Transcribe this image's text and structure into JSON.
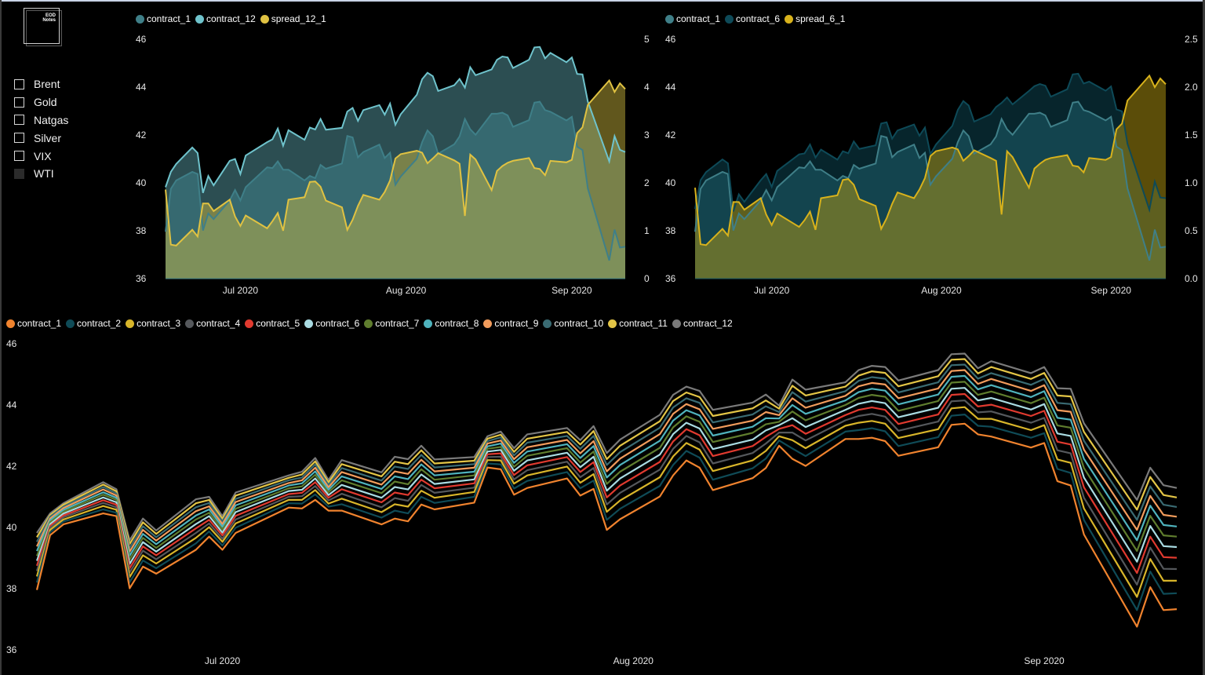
{
  "logo": {
    "line1": "EOD",
    "line2": "Notes"
  },
  "slicer": {
    "items": [
      {
        "label": "Brent",
        "checked": false
      },
      {
        "label": "Gold",
        "checked": false
      },
      {
        "label": "Natgas",
        "checked": false
      },
      {
        "label": "Silver",
        "checked": false
      },
      {
        "label": "VIX",
        "checked": false
      },
      {
        "label": "WTI",
        "checked": true
      }
    ]
  },
  "chart_data": [
    {
      "id": "spread-12-1",
      "type": "area",
      "title": "",
      "legend": [
        {
          "name": "contract_1",
          "color": "#3f7f88"
        },
        {
          "name": "contract_12",
          "color": "#6fc3cc"
        },
        {
          "name": "spread_12_1",
          "color": "#e0c242"
        }
      ],
      "legend_position": "top-left",
      "xlabel": "",
      "ylabel": "",
      "y2label": "",
      "x_ticks": [
        "Jul 2020",
        "Aug 2020",
        "Sep 2020"
      ],
      "ylim": [
        36,
        46
      ],
      "y_ticks": [
        "36",
        "38",
        "40",
        "42",
        "44",
        "46"
      ],
      "y2lim": [
        0,
        5
      ],
      "y2_ticks": [
        "0",
        "1",
        "2",
        "3",
        "4",
        "5"
      ],
      "series_left": [
        "contract_1",
        "contract_12"
      ],
      "series_right": "spread_12_1"
    },
    {
      "id": "spread-6-1",
      "type": "area",
      "title": "",
      "legend": [
        {
          "name": "contract_1",
          "color": "#3f7f88"
        },
        {
          "name": "contract_6",
          "color": "#0e4a58"
        },
        {
          "name": "spread_6_1",
          "color": "#d8b21c"
        }
      ],
      "legend_position": "top-left",
      "xlabel": "",
      "ylabel": "",
      "y2label": "",
      "x_ticks": [
        "Jul 2020",
        "Aug 2020",
        "Sep 2020"
      ],
      "ylim": [
        36,
        46
      ],
      "y_ticks": [
        "36",
        "38",
        "40",
        "42",
        "44",
        "46"
      ],
      "y2lim": [
        0,
        2.5
      ],
      "y2_ticks": [
        "0.0",
        "0.5",
        "1.0",
        "1.5",
        "2.0",
        "2.5"
      ],
      "series_left": [
        "contract_1",
        "contract_6"
      ],
      "series_right": "spread_6_1"
    },
    {
      "id": "term-structure",
      "type": "line",
      "title": "",
      "legend": [
        {
          "name": "contract_1",
          "color": "#f0832e"
        },
        {
          "name": "contract_2",
          "color": "#0f4b57"
        },
        {
          "name": "contract_3",
          "color": "#d8b52a"
        },
        {
          "name": "contract_4",
          "color": "#55585c"
        },
        {
          "name": "contract_5",
          "color": "#e03a2f"
        },
        {
          "name": "contract_6",
          "color": "#a9dbe2"
        },
        {
          "name": "contract_7",
          "color": "#5f7d2e"
        },
        {
          "name": "contract_8",
          "color": "#4fb3bd"
        },
        {
          "name": "contract_9",
          "color": "#f29c5c"
        },
        {
          "name": "contract_10",
          "color": "#3a6b73"
        },
        {
          "name": "contract_11",
          "color": "#e3c546"
        },
        {
          "name": "contract_12",
          "color": "#7a7a7a"
        }
      ],
      "legend_position": "top-left",
      "xlabel": "",
      "ylabel": "",
      "x_ticks": [
        "Jul 2020",
        "Aug 2020",
        "Sep 2020"
      ],
      "ylim": [
        36,
        46
      ],
      "y_ticks": [
        "36",
        "38",
        "40",
        "42",
        "44",
        "46"
      ]
    }
  ],
  "series": {
    "x": [
      "2020-06-17",
      "2020-06-18",
      "2020-06-19",
      "2020-06-22",
      "2020-06-23",
      "2020-06-24",
      "2020-06-25",
      "2020-06-26",
      "2020-06-29",
      "2020-06-30",
      "2020-07-01",
      "2020-07-02",
      "2020-07-06",
      "2020-07-07",
      "2020-07-08",
      "2020-07-09",
      "2020-07-10",
      "2020-07-13",
      "2020-07-14",
      "2020-07-15",
      "2020-07-16",
      "2020-07-17",
      "2020-07-20",
      "2020-07-21",
      "2020-07-22",
      "2020-07-23",
      "2020-07-24",
      "2020-07-27",
      "2020-07-28",
      "2020-07-29",
      "2020-07-30",
      "2020-07-31",
      "2020-08-03",
      "2020-08-04",
      "2020-08-05",
      "2020-08-06",
      "2020-08-07",
      "2020-08-10",
      "2020-08-11",
      "2020-08-12",
      "2020-08-13",
      "2020-08-14",
      "2020-08-17",
      "2020-08-18",
      "2020-08-19",
      "2020-08-20",
      "2020-08-21",
      "2020-08-24",
      "2020-08-25",
      "2020-08-26",
      "2020-08-27",
      "2020-08-28",
      "2020-08-31",
      "2020-09-01",
      "2020-09-02",
      "2020-09-03",
      "2020-09-04",
      "2020-09-08",
      "2020-09-09",
      "2020-09-10",
      "2020-09-11"
    ],
    "contract_1": [
      37.96,
      39.75,
      40.1,
      40.46,
      40.37,
      38.01,
      38.72,
      38.49,
      39.27,
      39.7,
      39.27,
      39.82,
      40.65,
      40.62,
      40.9,
      40.55,
      40.55,
      40.1,
      40.29,
      40.2,
      40.75,
      40.59,
      40.81,
      41.96,
      41.9,
      41.07,
      41.29,
      41.6,
      41.04,
      41.26,
      39.92,
      40.27,
      41.01,
      41.7,
      42.19,
      41.95,
      41.22,
      41.61,
      41.94,
      42.67,
      42.24,
      42.01,
      42.89,
      42.89,
      42.93,
      42.82,
      42.34,
      42.62,
      43.35,
      43.39,
      43.04,
      42.97,
      42.61,
      42.76,
      41.51,
      41.37,
      39.77,
      36.76,
      38.05,
      37.3,
      37.33
    ],
    "contract_12": [
      39.82,
      40.46,
      40.79,
      41.48,
      41.25,
      39.58,
      40.29,
      39.9,
      40.92,
      41.0,
      40.37,
      41.14,
      41.7,
      41.82,
      42.27,
      41.55,
      42.2,
      41.8,
      42.31,
      42.23,
      42.67,
      42.22,
      42.3,
      42.98,
      43.13,
      42.59,
      43.04,
      43.25,
      42.85,
      43.31,
      42.43,
      42.87,
      43.68,
      44.33,
      44.6,
      44.46,
      43.84,
      44.08,
      44.34,
      43.98,
      44.83,
      44.5,
      44.74,
      45.14,
      45.28,
      45.24,
      44.8,
      45.14,
      45.66,
      45.68,
      45.2,
      45.43,
      45.04,
      45.24,
      44.55,
      44.53,
      43.4,
      40.9,
      41.95,
      41.38,
      41.29
    ]
  }
}
